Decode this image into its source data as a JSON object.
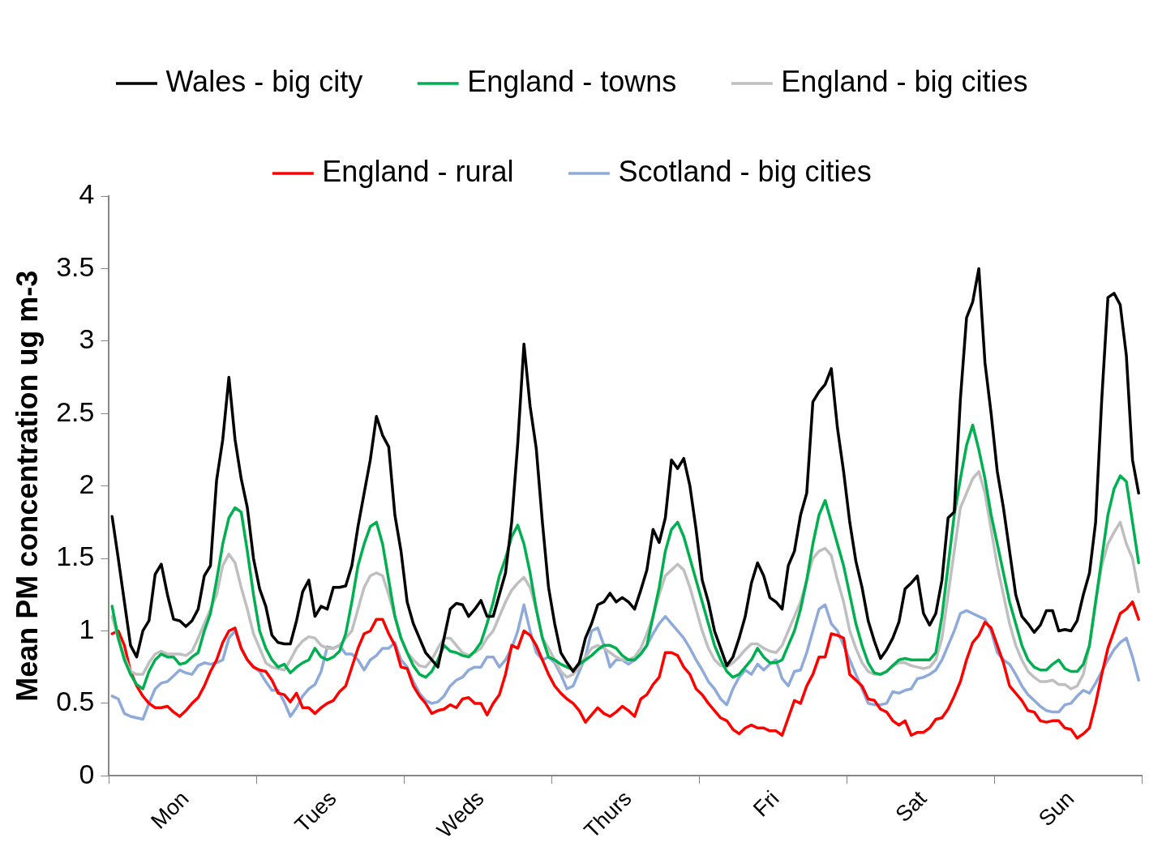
{
  "chart_data": {
    "type": "line",
    "ylabel": "Mean PM concentration ug m-3",
    "categories": [
      null,
      null,
      null,
      null,
      null,
      null,
      null,
      null,
      null,
      null,
      null,
      null,
      "Mon",
      null,
      null,
      null,
      null,
      null,
      null,
      null,
      null,
      null,
      null,
      null,
      null,
      null,
      null,
      null,
      null,
      null,
      null,
      null,
      null,
      null,
      null,
      null,
      "Tues",
      null,
      null,
      null,
      null,
      null,
      null,
      null,
      null,
      null,
      null,
      null,
      null,
      null,
      null,
      null,
      null,
      null,
      null,
      null,
      null,
      null,
      null,
      null,
      "Weds",
      null,
      null,
      null,
      null,
      null,
      null,
      null,
      null,
      null,
      null,
      null,
      null,
      null,
      null,
      null,
      null,
      null,
      null,
      null,
      null,
      null,
      null,
      null,
      "Thurs",
      null,
      null,
      null,
      null,
      null,
      null,
      null,
      null,
      null,
      null,
      null,
      null,
      null,
      null,
      null,
      null,
      null,
      null,
      null,
      null,
      null,
      null,
      null,
      "Fri",
      null,
      null,
      null,
      null,
      null,
      null,
      null,
      null,
      null,
      null,
      null,
      null,
      null,
      null,
      null,
      null,
      null,
      null,
      null,
      null,
      null,
      null,
      null,
      "Sat",
      null,
      null,
      null,
      null,
      null,
      null,
      null,
      null,
      null,
      null,
      null,
      null,
      null,
      null,
      null,
      null,
      null,
      null,
      null,
      null,
      null,
      null,
      null,
      "Sun",
      null,
      null,
      null,
      null,
      null,
      null,
      null,
      null,
      null,
      null,
      null
    ],
    "ylim": [
      0,
      4
    ],
    "yticks": [
      0,
      0.5,
      1,
      1.5,
      2,
      2.5,
      3,
      3.5,
      4
    ],
    "grid": false,
    "legend": "top",
    "marker": "none",
    "line_style": "solid",
    "series": [
      {
        "name": "Wales - big city",
        "color": "#000000",
        "values": [
          1.79,
          1.5,
          1.2,
          0.9,
          0.82,
          1.0,
          1.07,
          1.39,
          1.46,
          1.25,
          1.08,
          1.07,
          1.03,
          1.07,
          1.15,
          1.38,
          1.45,
          2.04,
          2.32,
          2.75,
          2.32,
          2.05,
          1.85,
          1.5,
          1.29,
          1.17,
          0.97,
          0.92,
          0.91,
          0.91,
          1.07,
          1.27,
          1.35,
          1.1,
          1.17,
          1.15,
          1.3,
          1.3,
          1.31,
          1.45,
          1.72,
          1.95,
          2.18,
          2.48,
          2.35,
          2.27,
          1.8,
          1.55,
          1.2,
          1.05,
          0.95,
          0.85,
          0.8,
          0.75,
          0.95,
          1.15,
          1.19,
          1.18,
          1.1,
          1.15,
          1.21,
          1.1,
          1.1,
          1.25,
          1.4,
          1.75,
          2.3,
          2.98,
          2.55,
          2.26,
          1.75,
          1.3,
          1.05,
          0.85,
          0.78,
          0.72,
          0.78,
          0.95,
          1.05,
          1.18,
          1.2,
          1.26,
          1.2,
          1.23,
          1.2,
          1.15,
          1.28,
          1.42,
          1.7,
          1.61,
          1.78,
          2.18,
          2.12,
          2.19,
          2.0,
          1.7,
          1.35,
          1.2,
          1.0,
          0.88,
          0.76,
          0.82,
          0.95,
          1.1,
          1.33,
          1.47,
          1.38,
          1.23,
          1.2,
          1.15,
          1.45,
          1.55,
          1.8,
          1.95,
          2.58,
          2.65,
          2.7,
          2.81,
          2.4,
          2.1,
          1.75,
          1.48,
          1.3,
          1.07,
          0.93,
          0.81,
          0.87,
          0.95,
          1.06,
          1.29,
          1.33,
          1.38,
          1.12,
          1.04,
          1.12,
          1.35,
          1.78,
          1.82,
          2.6,
          3.16,
          3.27,
          3.5,
          2.85,
          2.5,
          2.1,
          1.85,
          1.55,
          1.25,
          1.1,
          1.05,
          0.99,
          1.04,
          1.14,
          1.14,
          1.0,
          1.01,
          1.0,
          1.07,
          1.25,
          1.4,
          1.75,
          2.6,
          3.3,
          3.33,
          3.25,
          2.9,
          2.18,
          1.95
        ]
      },
      {
        "name": "England - towns",
        "color": "#00b050",
        "values": [
          1.17,
          0.95,
          0.8,
          0.7,
          0.63,
          0.6,
          0.72,
          0.8,
          0.84,
          0.82,
          0.82,
          0.77,
          0.78,
          0.82,
          0.85,
          1.0,
          1.12,
          1.35,
          1.6,
          1.78,
          1.85,
          1.82,
          1.55,
          1.25,
          1.0,
          0.88,
          0.8,
          0.75,
          0.77,
          0.71,
          0.75,
          0.78,
          0.8,
          0.88,
          0.82,
          0.8,
          0.82,
          0.86,
          0.98,
          1.2,
          1.45,
          1.6,
          1.72,
          1.75,
          1.6,
          1.35,
          1.1,
          0.95,
          0.85,
          0.76,
          0.7,
          0.68,
          0.72,
          0.8,
          0.9,
          0.86,
          0.85,
          0.83,
          0.82,
          0.86,
          0.92,
          1.05,
          1.2,
          1.38,
          1.5,
          1.65,
          1.73,
          1.6,
          1.4,
          1.15,
          0.95,
          0.82,
          0.8,
          0.77,
          0.75,
          0.73,
          0.77,
          0.8,
          0.83,
          0.87,
          0.9,
          0.9,
          0.88,
          0.83,
          0.8,
          0.8,
          0.84,
          0.9,
          1.1,
          1.3,
          1.55,
          1.7,
          1.75,
          1.65,
          1.5,
          1.35,
          1.2,
          1.05,
          0.9,
          0.8,
          0.72,
          0.68,
          0.7,
          0.75,
          0.8,
          0.88,
          0.82,
          0.78,
          0.78,
          0.8,
          0.9,
          1.0,
          1.15,
          1.35,
          1.6,
          1.8,
          1.9,
          1.75,
          1.6,
          1.45,
          1.25,
          1.05,
          0.9,
          0.78,
          0.71,
          0.7,
          0.72,
          0.76,
          0.8,
          0.81,
          0.8,
          0.8,
          0.8,
          0.8,
          0.85,
          1.1,
          1.45,
          1.8,
          2.05,
          2.28,
          2.42,
          2.25,
          2.05,
          1.8,
          1.6,
          1.4,
          1.2,
          1.05,
          0.9,
          0.8,
          0.75,
          0.73,
          0.73,
          0.77,
          0.8,
          0.74,
          0.72,
          0.72,
          0.77,
          0.9,
          1.2,
          1.5,
          1.8,
          1.98,
          2.07,
          2.03,
          1.75,
          1.47
        ]
      },
      {
        "name": "England - big cities",
        "color": "#bfbfbf",
        "values": [
          1.1,
          0.95,
          0.82,
          0.72,
          0.7,
          0.7,
          0.78,
          0.84,
          0.86,
          0.84,
          0.84,
          0.84,
          0.83,
          0.86,
          0.95,
          1.05,
          1.15,
          1.25,
          1.45,
          1.53,
          1.47,
          1.3,
          1.15,
          0.98,
          0.88,
          0.78,
          0.75,
          0.74,
          0.73,
          0.8,
          0.88,
          0.93,
          0.96,
          0.95,
          0.9,
          0.88,
          0.88,
          0.9,
          0.95,
          1.0,
          1.15,
          1.3,
          1.38,
          1.4,
          1.38,
          1.25,
          1.1,
          0.95,
          0.85,
          0.8,
          0.76,
          0.75,
          0.8,
          0.88,
          0.95,
          0.95,
          0.9,
          0.85,
          0.83,
          0.85,
          0.88,
          0.95,
          1.0,
          1.1,
          1.2,
          1.28,
          1.33,
          1.37,
          1.3,
          1.15,
          0.95,
          0.88,
          0.8,
          0.72,
          0.68,
          0.7,
          0.75,
          0.82,
          0.88,
          0.9,
          0.88,
          0.85,
          0.82,
          0.8,
          0.8,
          0.82,
          0.88,
          0.98,
          1.1,
          1.25,
          1.38,
          1.42,
          1.46,
          1.42,
          1.3,
          1.15,
          1.0,
          0.88,
          0.8,
          0.76,
          0.75,
          0.78,
          0.82,
          0.87,
          0.91,
          0.91,
          0.88,
          0.86,
          0.85,
          0.9,
          1.0,
          1.1,
          1.2,
          1.35,
          1.5,
          1.55,
          1.57,
          1.52,
          1.35,
          1.2,
          1.0,
          0.88,
          0.78,
          0.72,
          0.7,
          0.7,
          0.72,
          0.76,
          0.78,
          0.78,
          0.76,
          0.75,
          0.74,
          0.75,
          0.8,
          0.95,
          1.25,
          1.55,
          1.85,
          1.95,
          2.05,
          2.1,
          1.95,
          1.7,
          1.45,
          1.25,
          1.05,
          0.9,
          0.8,
          0.72,
          0.68,
          0.65,
          0.65,
          0.66,
          0.63,
          0.63,
          0.6,
          0.62,
          0.7,
          0.9,
          1.2,
          1.45,
          1.6,
          1.68,
          1.75,
          1.6,
          1.5,
          1.27
        ]
      },
      {
        "name": "England - rural",
        "color": "#ff0000",
        "values": [
          0.98,
          1.0,
          0.9,
          0.72,
          0.62,
          0.55,
          0.5,
          0.47,
          0.47,
          0.48,
          0.44,
          0.41,
          0.45,
          0.5,
          0.54,
          0.62,
          0.72,
          0.8,
          0.92,
          1.0,
          1.02,
          0.88,
          0.8,
          0.75,
          0.73,
          0.72,
          0.66,
          0.57,
          0.56,
          0.51,
          0.57,
          0.47,
          0.47,
          0.43,
          0.47,
          0.5,
          0.52,
          0.58,
          0.62,
          0.75,
          0.88,
          0.98,
          1.0,
          1.08,
          1.08,
          0.98,
          0.9,
          0.75,
          0.74,
          0.62,
          0.55,
          0.5,
          0.43,
          0.45,
          0.46,
          0.49,
          0.47,
          0.53,
          0.54,
          0.5,
          0.5,
          0.42,
          0.5,
          0.56,
          0.7,
          0.9,
          0.88,
          1.0,
          0.97,
          0.9,
          0.8,
          0.7,
          0.62,
          0.57,
          0.53,
          0.5,
          0.45,
          0.37,
          0.42,
          0.47,
          0.43,
          0.41,
          0.44,
          0.48,
          0.45,
          0.41,
          0.53,
          0.56,
          0.63,
          0.68,
          0.85,
          0.85,
          0.83,
          0.75,
          0.7,
          0.6,
          0.56,
          0.5,
          0.45,
          0.4,
          0.38,
          0.32,
          0.29,
          0.33,
          0.35,
          0.33,
          0.33,
          0.31,
          0.31,
          0.28,
          0.4,
          0.52,
          0.5,
          0.62,
          0.7,
          0.82,
          0.82,
          0.98,
          0.97,
          0.95,
          0.7,
          0.66,
          0.62,
          0.53,
          0.52,
          0.46,
          0.44,
          0.38,
          0.35,
          0.38,
          0.28,
          0.3,
          0.3,
          0.33,
          0.39,
          0.4,
          0.46,
          0.55,
          0.65,
          0.8,
          0.92,
          0.97,
          1.06,
          1.02,
          0.9,
          0.78,
          0.62,
          0.57,
          0.52,
          0.45,
          0.44,
          0.38,
          0.37,
          0.38,
          0.38,
          0.33,
          0.32,
          0.26,
          0.29,
          0.33,
          0.5,
          0.7,
          0.88,
          1.0,
          1.12,
          1.15,
          1.2,
          1.08
        ]
      },
      {
        "name": "Scotland - big cities",
        "color": "#8eaadb",
        "values": [
          0.55,
          0.53,
          0.43,
          0.41,
          0.4,
          0.39,
          0.5,
          0.6,
          0.64,
          0.65,
          0.69,
          0.73,
          0.71,
          0.7,
          0.76,
          0.78,
          0.77,
          0.78,
          0.8,
          0.95,
          1.0,
          0.88,
          0.8,
          0.75,
          0.72,
          0.65,
          0.59,
          0.59,
          0.51,
          0.41,
          0.47,
          0.55,
          0.6,
          0.63,
          0.72,
          0.89,
          0.88,
          0.9,
          0.84,
          0.84,
          0.8,
          0.73,
          0.8,
          0.83,
          0.88,
          0.88,
          0.92,
          0.8,
          0.75,
          0.65,
          0.57,
          0.52,
          0.5,
          0.51,
          0.55,
          0.62,
          0.66,
          0.68,
          0.73,
          0.75,
          0.75,
          0.82,
          0.82,
          0.75,
          0.8,
          0.88,
          1.0,
          1.18,
          1.0,
          0.85,
          0.8,
          0.82,
          0.78,
          0.7,
          0.6,
          0.62,
          0.72,
          0.82,
          1.0,
          1.02,
          0.9,
          0.75,
          0.8,
          0.8,
          0.77,
          0.8,
          0.84,
          0.9,
          0.98,
          1.05,
          1.1,
          1.05,
          1.0,
          0.95,
          0.88,
          0.8,
          0.73,
          0.65,
          0.6,
          0.53,
          0.49,
          0.6,
          0.68,
          0.73,
          0.7,
          0.77,
          0.73,
          0.77,
          0.8,
          0.67,
          0.62,
          0.72,
          0.73,
          0.85,
          1.0,
          1.15,
          1.18,
          1.05,
          1.0,
          0.9,
          0.8,
          0.7,
          0.6,
          0.5,
          0.49,
          0.49,
          0.5,
          0.58,
          0.57,
          0.59,
          0.6,
          0.67,
          0.68,
          0.7,
          0.73,
          0.8,
          0.9,
          1.0,
          1.12,
          1.14,
          1.12,
          1.1,
          1.08,
          1.0,
          0.85,
          0.8,
          0.77,
          0.7,
          0.62,
          0.56,
          0.52,
          0.48,
          0.45,
          0.44,
          0.44,
          0.49,
          0.5,
          0.55,
          0.59,
          0.57,
          0.64,
          0.72,
          0.8,
          0.87,
          0.92,
          0.95,
          0.82,
          0.66
        ]
      }
    ]
  }
}
